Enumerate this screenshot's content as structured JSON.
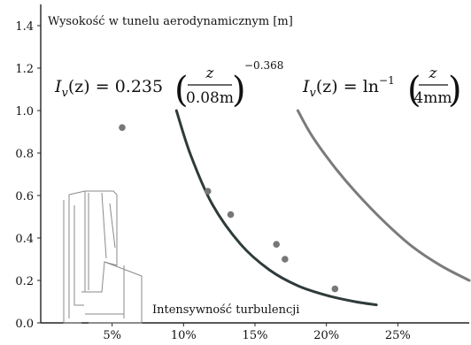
{
  "chart_data": {
    "type": "scatter",
    "title": "",
    "ylabel": "Wysokość w tunelu aerodynamicznym [m]",
    "xlabel": "Intensywność turbulencji",
    "xlim": [
      0,
      30
    ],
    "ylim": [
      0,
      1.5
    ],
    "x_ticks": [
      "5%",
      "10%",
      "15%",
      "20%",
      "25%"
    ],
    "x_tick_values": [
      5,
      10,
      15,
      20,
      25
    ],
    "y_ticks": [
      "0.0",
      "0.2",
      "0.4",
      "0.6",
      "0.8",
      "1.0",
      "1.2",
      "1.4"
    ],
    "y_tick_values": [
      0.0,
      0.2,
      0.4,
      0.6,
      0.8,
      1.0,
      1.2,
      1.4
    ],
    "grid": false,
    "points": [
      {
        "x": 5.7,
        "y": 0.92
      },
      {
        "x": 11.7,
        "y": 0.62
      },
      {
        "x": 13.3,
        "y": 0.51
      },
      {
        "x": 16.5,
        "y": 0.37
      },
      {
        "x": 17.1,
        "y": 0.3
      },
      {
        "x": 20.6,
        "y": 0.16
      }
    ],
    "curves": [
      {
        "formula": "I_v(z) = 0.235 (z/0.08m)^-0.368",
        "color": "#2f3b3b",
        "x_range": [
          9.5,
          23.5
        ],
        "y_samples": [
          [
            9.5,
            1.0
          ],
          [
            10.5,
            0.79
          ],
          [
            12,
            0.56
          ],
          [
            14,
            0.37
          ],
          [
            16,
            0.25
          ],
          [
            18,
            0.175
          ],
          [
            20,
            0.13
          ],
          [
            22,
            0.1
          ],
          [
            23.5,
            0.085
          ]
        ]
      },
      {
        "formula": "I_v(z) = ln^-1 (z/4mm)",
        "color": "#7b7b7b",
        "x_range": [
          18,
          30
        ],
        "y_samples": [
          [
            18,
            1.0
          ],
          [
            19,
            0.88
          ],
          [
            20.5,
            0.74
          ],
          [
            22,
            0.62
          ],
          [
            24,
            0.48
          ],
          [
            26,
            0.36
          ],
          [
            28,
            0.27
          ],
          [
            30,
            0.2
          ]
        ]
      }
    ],
    "point_color": "#777777",
    "formula_left": {
      "lhs": "I",
      "sub": "v",
      "arg": "(z) = 0.235",
      "num": "z",
      "den": "0.08m",
      "exp": "−0.368"
    },
    "formula_right": {
      "lhs": "I",
      "sub": "v",
      "arg": "(z) = ln",
      "exp": "−1",
      "num": "z",
      "den": "4mm"
    }
  }
}
